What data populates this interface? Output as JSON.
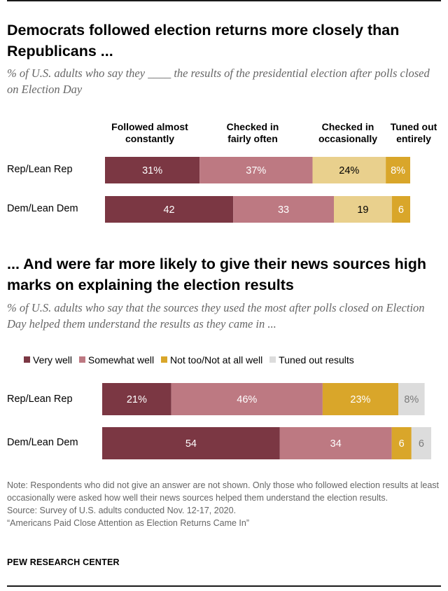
{
  "chart_data": [
    {
      "type": "bar",
      "orientation": "horizontal",
      "stacked": true,
      "title": "Democrats followed election returns more closely than Republicans ...",
      "subtitle": "% of U.S. adults who say they ____ the results of the presidential election after polls closed on Election Day",
      "categories": [
        "Rep/Lean Rep",
        "Dem/Lean Dem"
      ],
      "series": [
        {
          "name": "Followed almost constantly",
          "values": [
            31,
            42
          ],
          "labels": [
            "31%",
            "42"
          ],
          "color": "#7b3743"
        },
        {
          "name": "Checked in fairly often",
          "values": [
            37,
            33
          ],
          "labels": [
            "37%",
            "33"
          ],
          "color": "#bd7982"
        },
        {
          "name": "Checked in occasionally",
          "values": [
            24,
            19
          ],
          "labels": [
            "24%",
            "19"
          ],
          "color": "#e9d08d"
        },
        {
          "name": "Tuned out entirely",
          "values": [
            8,
            6
          ],
          "labels": [
            "8%",
            "6"
          ],
          "color": "#d9a62a"
        }
      ]
    },
    {
      "type": "bar",
      "orientation": "horizontal",
      "stacked": true,
      "title": "... And were far more likely to give their news sources high marks on explaining the election results",
      "subtitle": "% of U.S. adults who say that the sources they used the most after polls closed on Election Day helped them understand the results as they came in ...",
      "categories": [
        "Rep/Lean Rep",
        "Dem/Lean Dem"
      ],
      "legend_position": "top",
      "series": [
        {
          "name": "Very well",
          "values": [
            21,
            54
          ],
          "labels": [
            "21%",
            "54"
          ],
          "color": "#7b3743"
        },
        {
          "name": "Somewhat well",
          "values": [
            46,
            34
          ],
          "labels": [
            "46%",
            "34"
          ],
          "color": "#bd7982"
        },
        {
          "name": "Not too/Not at all well",
          "values": [
            23,
            6
          ],
          "labels": [
            "23%",
            "6"
          ],
          "color": "#d9a62a"
        },
        {
          "name": "Tuned out results",
          "values": [
            8,
            6
          ],
          "labels": [
            "8%",
            "6"
          ],
          "color": "#dcdcdc"
        }
      ]
    }
  ],
  "chart1_headers": [
    {
      "line1": "Followed almost",
      "line2": "constantly"
    },
    {
      "line1": "Checked in",
      "line2": "fairly often"
    },
    {
      "line1": "Checked in",
      "line2": "occasionally"
    },
    {
      "line1": "Tuned out",
      "line2": "entirely"
    }
  ],
  "note": "Note: Respondents who did not give an answer are not shown. Only those who followed election results at least occasionally were asked how well their news sources helped them understand the election results.",
  "source": "Source: Survey of U.S. adults conducted Nov. 12-17, 2020.",
  "report": "“Americans Paid Close Attention as Election Returns Came In”",
  "brand": "PEW RESEARCH CENTER"
}
